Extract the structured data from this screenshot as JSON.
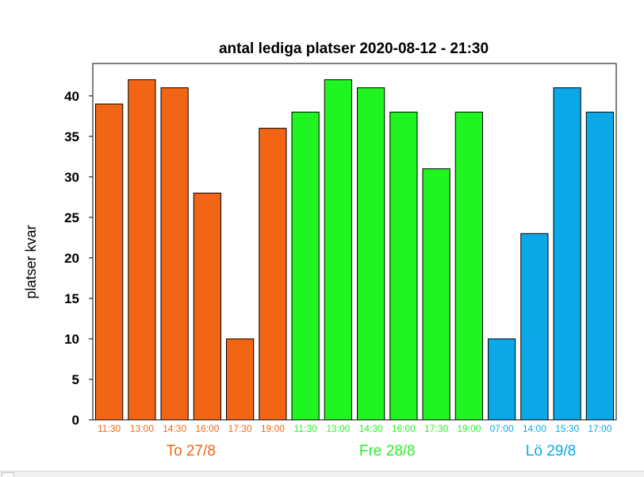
{
  "chart_data": {
    "type": "bar",
    "title": "antal lediga platser 2020-08-12 - 21:30",
    "xlabel": "",
    "ylabel": "platser kvar",
    "ylim": [
      0,
      44
    ],
    "yticks": [
      0,
      5,
      10,
      15,
      20,
      25,
      30,
      35,
      40
    ],
    "grid": false,
    "categories": [
      "11:30",
      "13:00",
      "14:30",
      "16:00",
      "17:30",
      "19:00",
      "11:30",
      "13:00",
      "14:30",
      "16:00",
      "17:30",
      "19:00",
      "07:00",
      "14:00",
      "15:30",
      "17:00"
    ],
    "values": [
      39,
      42,
      41,
      28,
      10,
      36,
      38,
      42,
      41,
      38,
      31,
      38,
      10,
      23,
      41,
      38
    ],
    "groups": [
      {
        "label": "To 27/8",
        "color": "#f26514",
        "count": 6
      },
      {
        "label": "Fre 28/8",
        "color": "#21f521",
        "count": 6
      },
      {
        "label": "Lö 29/8",
        "color": "#0aa8e6",
        "count": 4
      }
    ]
  }
}
